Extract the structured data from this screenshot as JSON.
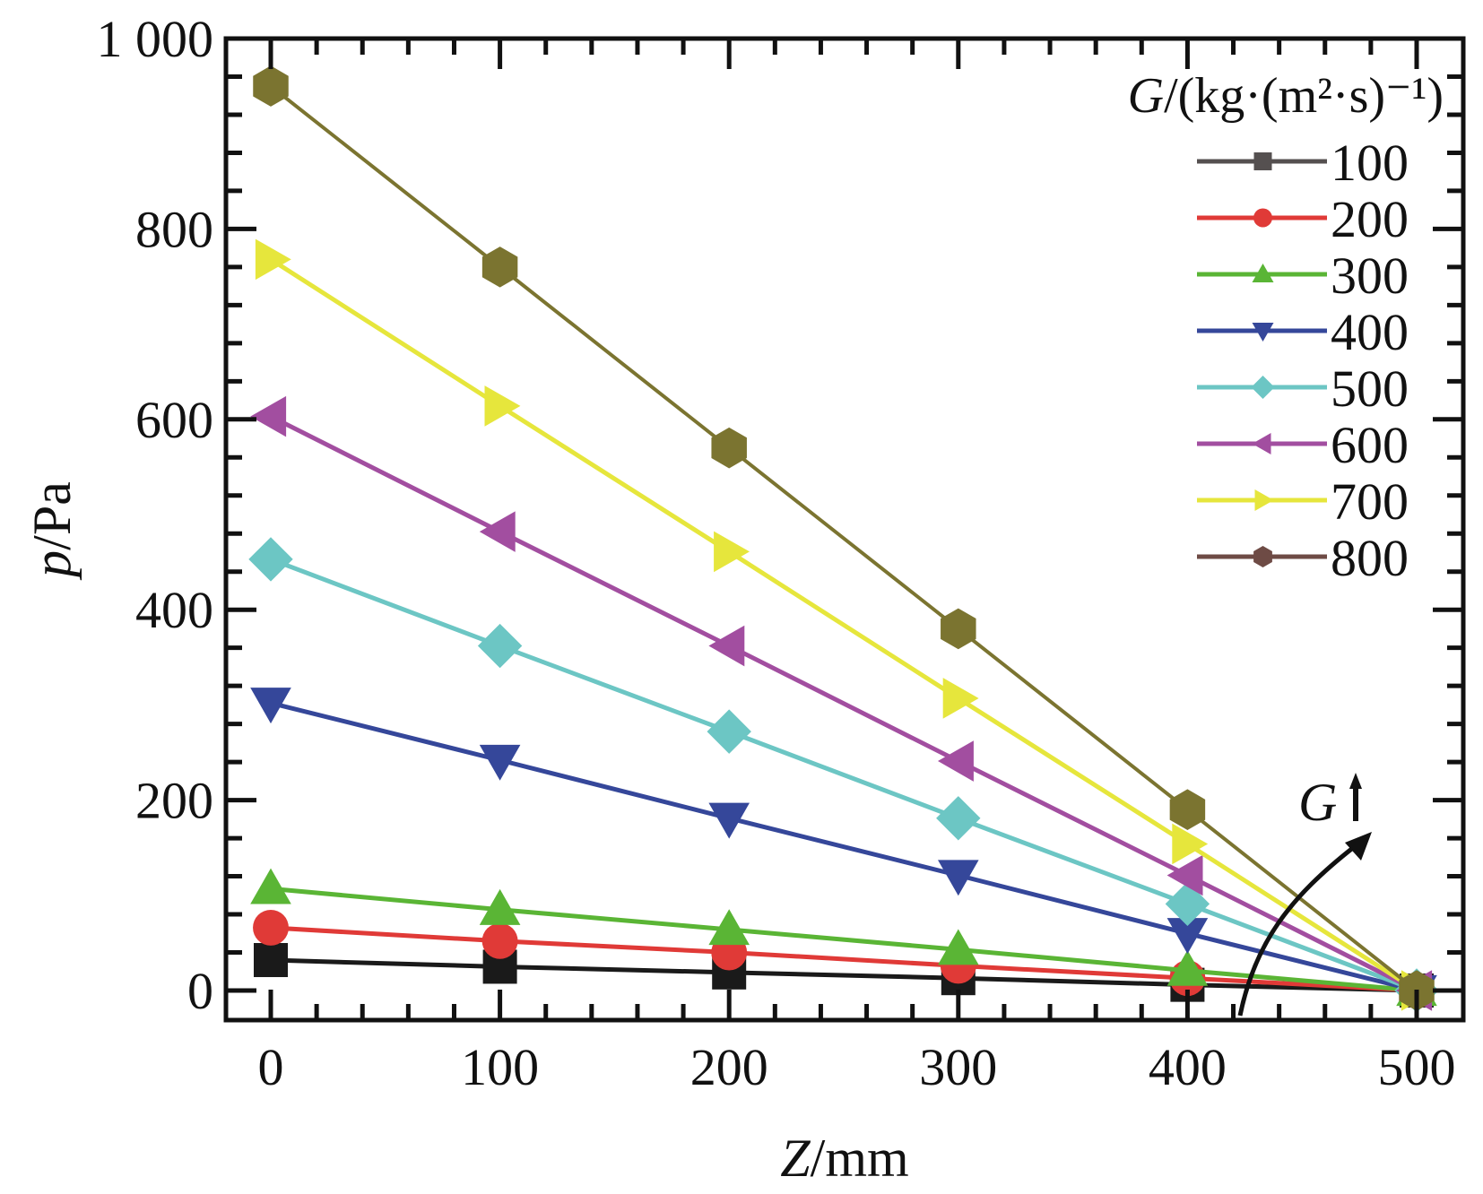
{
  "chart_data": {
    "type": "line",
    "title": "",
    "xlabel": "Z/mm",
    "xlabel_italic_part": "Z",
    "xlabel_rest": "/mm",
    "ylabel": "p/Pa",
    "ylabel_italic_part": "p",
    "ylabel_rest": "/Pa",
    "x": [
      0,
      100,
      200,
      300,
      400,
      500
    ],
    "xlim": [
      -20,
      520
    ],
    "ylim": [
      -30,
      1000
    ],
    "xticks": [
      0,
      100,
      200,
      300,
      400,
      500
    ],
    "xtick_labels": [
      "0",
      "100",
      "200",
      "300",
      "400",
      "500"
    ],
    "yticks": [
      0,
      200,
      400,
      600,
      800,
      1000
    ],
    "ytick_labels": [
      "0",
      "200",
      "400",
      "600",
      "800",
      "1 000"
    ],
    "grid": false,
    "legend": {
      "placement": "top-right",
      "title_italic": "G",
      "title_rest": "/(kg·(m²·s)⁻¹)"
    },
    "series": [
      {
        "name": "100",
        "color": "#1a1a1a",
        "legend_color": "#555050",
        "marker": "square",
        "values": [
          32,
          25,
          19,
          13,
          6,
          0
        ]
      },
      {
        "name": "200",
        "color": "#e03a37",
        "legend_color": "#e03a37",
        "marker": "circle",
        "values": [
          66,
          52,
          40,
          26,
          13,
          0
        ]
      },
      {
        "name": "300",
        "color": "#5ab535",
        "legend_color": "#5ab535",
        "marker": "triangle-up",
        "values": [
          107,
          85,
          64,
          43,
          21,
          0
        ]
      },
      {
        "name": "400",
        "color": "#35479a",
        "legend_color": "#35479a",
        "marker": "triangle-down",
        "values": [
          302,
          242,
          181,
          121,
          60,
          0
        ]
      },
      {
        "name": "500",
        "color": "#6cc6c4",
        "legend_color": "#6cc6c4",
        "marker": "diamond",
        "values": [
          453,
          362,
          272,
          181,
          91,
          0
        ]
      },
      {
        "name": "600",
        "color": "#a24ea0",
        "legend_color": "#a24ea0",
        "marker": "triangle-left",
        "values": [
          603,
          482,
          362,
          241,
          121,
          0
        ]
      },
      {
        "name": "700",
        "color": "#e6e63c",
        "legend_color": "#e6e63c",
        "marker": "triangle-right",
        "values": [
          768,
          614,
          461,
          307,
          154,
          0
        ]
      },
      {
        "name": "800",
        "color": "#7b7430",
        "legend_color": "#6e4b45",
        "marker": "hexagon",
        "values": [
          950,
          760,
          570,
          380,
          190,
          0
        ]
      }
    ],
    "annotations": [
      {
        "text": "G",
        "suffix": "↑",
        "meaning": "curved arrow indicating increasing G",
        "type": "arrow"
      }
    ]
  }
}
